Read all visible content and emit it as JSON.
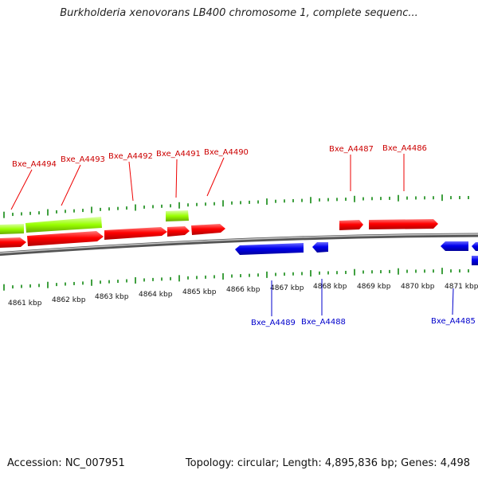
{
  "title": "Burkholderia xenovorans LB400 chromosome 1, complete sequenc...",
  "footer": {
    "accession": "Accession: NC_007951",
    "summary": "Topology: circular; Length: 4,895,836 bp; Genes: 4,498"
  },
  "colors": {
    "forward_gene": "#ff0000",
    "reverse_gene": "#0000ee",
    "cds_feature": "#99ff00",
    "tick": "#008000",
    "backbone": "#888888"
  },
  "kbp_labels": [
    "4861 kbp",
    "4862 kbp",
    "4863 kbp",
    "4864 kbp",
    "4865 kbp",
    "4866 kbp",
    "4867 kbp",
    "4868 kbp",
    "4869 kbp",
    "4870 kbp",
    "4871 kbp"
  ],
  "genes": {
    "top": [
      "Bxe_A4494",
      "Bxe_A4493",
      "Bxe_A4492",
      "Bxe_A4491",
      "Bxe_A4490",
      "Bxe_A4487",
      "Bxe_A4486"
    ],
    "bottom": [
      "Bxe_A4489",
      "Bxe_A4488",
      "Bxe_A4485"
    ]
  }
}
